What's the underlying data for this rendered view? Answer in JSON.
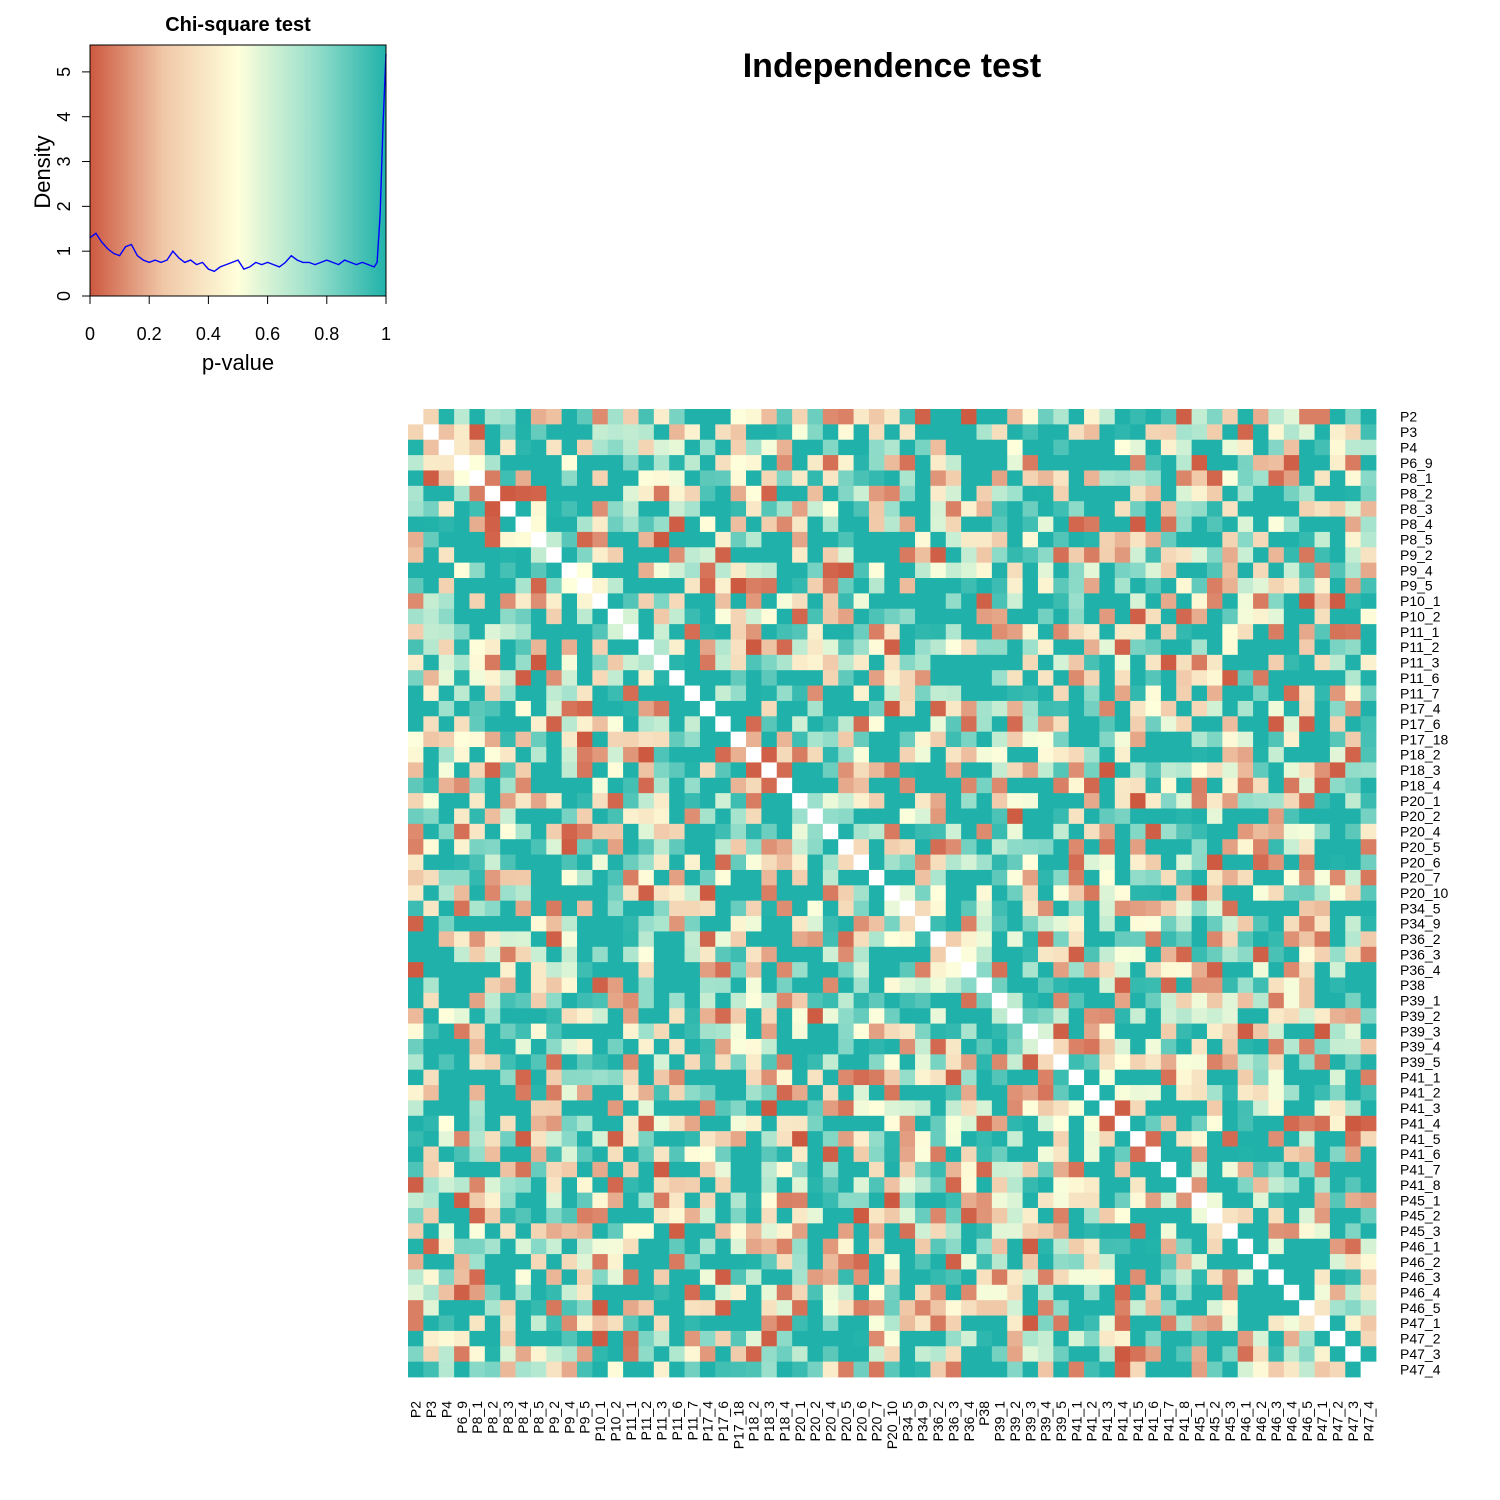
{
  "chart_data": [
    {
      "type": "area",
      "title": "Chi-square test",
      "xlabel": "p-value",
      "ylabel": "Density",
      "xlim": [
        0,
        1
      ],
      "ylim": [
        0,
        5.6
      ],
      "x_ticks": [
        "0",
        "0.2",
        "0.4",
        "0.6",
        "0.8",
        "1"
      ],
      "y_ticks": [
        "0",
        "1",
        "2",
        "3",
        "4",
        "5"
      ],
      "background_gradient": [
        "#cd5840",
        "#f0c8a8",
        "#ffffdb",
        "#9be0cc",
        "#20b2aa"
      ],
      "line_color": "#0000ff",
      "x": [
        0,
        0.02,
        0.04,
        0.06,
        0.08,
        0.1,
        0.12,
        0.14,
        0.16,
        0.18,
        0.2,
        0.22,
        0.24,
        0.26,
        0.28,
        0.3,
        0.32,
        0.34,
        0.36,
        0.38,
        0.4,
        0.42,
        0.44,
        0.46,
        0.48,
        0.5,
        0.52,
        0.54,
        0.56,
        0.58,
        0.6,
        0.62,
        0.64,
        0.66,
        0.68,
        0.7,
        0.72,
        0.74,
        0.76,
        0.78,
        0.8,
        0.82,
        0.84,
        0.86,
        0.88,
        0.9,
        0.92,
        0.94,
        0.96,
        0.97,
        0.98,
        0.99,
        1.0
      ],
      "y": [
        1.3,
        1.4,
        1.2,
        1.05,
        0.95,
        0.9,
        1.1,
        1.15,
        0.9,
        0.8,
        0.75,
        0.8,
        0.75,
        0.8,
        1.0,
        0.85,
        0.75,
        0.8,
        0.7,
        0.75,
        0.6,
        0.55,
        0.65,
        0.7,
        0.75,
        0.8,
        0.6,
        0.65,
        0.75,
        0.7,
        0.75,
        0.7,
        0.65,
        0.75,
        0.9,
        0.8,
        0.75,
        0.75,
        0.7,
        0.75,
        0.8,
        0.75,
        0.7,
        0.8,
        0.75,
        0.7,
        0.75,
        0.7,
        0.65,
        0.75,
        1.8,
        3.8,
        5.4
      ]
    },
    {
      "type": "heatmap",
      "title": "Independence test",
      "labels": [
        "P2",
        "P3",
        "P4",
        "P6_9",
        "P8_1",
        "P8_2",
        "P8_3",
        "P8_4",
        "P8_5",
        "P9_2",
        "P9_4",
        "P9_5",
        "P10_1",
        "P10_2",
        "P11_1",
        "P11_2",
        "P11_3",
        "P11_6",
        "P11_7",
        "P17_4",
        "P17_6",
        "P17_18",
        "P18_2",
        "P18_3",
        "P18_4",
        "P20_1",
        "P20_2",
        "P20_4",
        "P20_5",
        "P20_6",
        "P20_7",
        "P20_10",
        "P34_5",
        "P34_9",
        "P36_2",
        "P36_3",
        "P36_4",
        "P38",
        "P39_1",
        "P39_2",
        "P39_3",
        "P39_4",
        "P39_5",
        "P41_1",
        "P41_2",
        "P41_3",
        "P41_4",
        "P41_5",
        "P41_6",
        "P41_7",
        "P41_8",
        "P45_1",
        "P45_2",
        "P45_3",
        "P46_1",
        "P46_2",
        "P46_3",
        "P46_4",
        "P46_5",
        "P47_1",
        "P47_2",
        "P47_3",
        "P47_4"
      ],
      "value_range": [
        0,
        1
      ],
      "colorscale": [
        "#cd5840",
        "#f0c8a8",
        "#ffffdb",
        "#9be0cc",
        "#20b2aa"
      ],
      "diagonal_color": "#ffffff",
      "cell_values_approximate": true
    }
  ]
}
